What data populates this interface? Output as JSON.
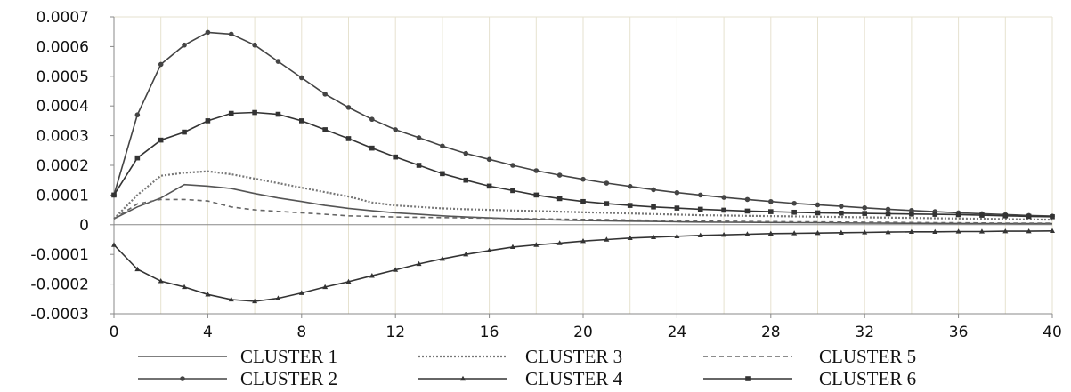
{
  "chart_data": {
    "type": "line",
    "title": "",
    "xlabel": "",
    "ylabel": "",
    "xlim": [
      0,
      40
    ],
    "ylim": [
      -0.0003,
      0.0007
    ],
    "xticks": [
      0,
      4,
      8,
      12,
      16,
      20,
      24,
      28,
      32,
      36,
      40
    ],
    "yticks": [
      -0.0003,
      -0.0002,
      -0.0001,
      0,
      0.0001,
      0.0002,
      0.0003,
      0.0004,
      0.0005,
      0.0006,
      0.0007
    ],
    "xtick_labels": [
      "0",
      "4",
      "8",
      "12",
      "16",
      "20",
      "24",
      "28",
      "32",
      "36",
      "40"
    ],
    "ytick_labels": [
      "-0.0003",
      "-0.0002",
      "-0.0001",
      "0",
      "0.0001",
      "0.0002",
      "0.0003",
      "0.0004",
      "0.0005",
      "0.0006",
      "0.0007"
    ],
    "grid": "vertical",
    "legend_position": "bottom",
    "x": [
      0,
      1,
      2,
      3,
      4,
      5,
      6,
      7,
      8,
      9,
      10,
      11,
      12,
      13,
      14,
      15,
      16,
      17,
      18,
      19,
      20,
      21,
      22,
      23,
      24,
      25,
      26,
      27,
      28,
      29,
      30,
      31,
      32,
      33,
      34,
      35,
      36,
      37,
      38,
      39,
      40
    ],
    "series": [
      {
        "name": "CLUSTER 1",
        "style": "solid-plain",
        "color": "#555555",
        "values": [
          2e-05,
          6e-05,
          9e-05,
          0.000135,
          0.00013,
          0.000122,
          0.000105,
          9e-05,
          7.8e-05,
          6.5e-05,
          5.5e-05,
          4.7e-05,
          4e-05,
          3.5e-05,
          3e-05,
          2.6e-05,
          2.3e-05,
          2e-05,
          1.8e-05,
          1.6e-05,
          1.4e-05,
          1.3e-05,
          1.2e-05,
          1.1e-05,
          1e-05,
          9e-06,
          8.5e-06,
          8e-06,
          7.5e-06,
          7e-06,
          6.5e-06,
          6e-06,
          5.5e-06,
          5e-06,
          4.8e-06,
          4.5e-06,
          4.3e-06,
          4e-06,
          3.8e-06,
          3.6e-06,
          3.5e-06
        ]
      },
      {
        "name": "CLUSTER 2",
        "style": "solid-circle",
        "color": "#444444",
        "values": [
          0.0001,
          0.00037,
          0.00054,
          0.000605,
          0.000648,
          0.000642,
          0.000605,
          0.00055,
          0.000495,
          0.00044,
          0.000395,
          0.000355,
          0.00032,
          0.000293,
          0.000265,
          0.00024,
          0.00022,
          0.0002,
          0.000182,
          0.000167,
          0.000153,
          0.00014,
          0.000129,
          0.000118,
          0.000108,
          0.0001,
          9.2e-05,
          8.5e-05,
          7.8e-05,
          7.2e-05,
          6.7e-05,
          6.2e-05,
          5.7e-05,
          5.2e-05,
          4.8e-05,
          4.4e-05,
          4e-05,
          3.7e-05,
          3.4e-05,
          3.1e-05,
          2.9e-05
        ]
      },
      {
        "name": "CLUSTER 3",
        "style": "dotted",
        "color": "#777777",
        "values": [
          2e-05,
          0.0001,
          0.000165,
          0.000175,
          0.00018,
          0.00017,
          0.000155,
          0.00014,
          0.000125,
          0.00011,
          9.5e-05,
          7.5e-05,
          6.5e-05,
          6e-05,
          5.5e-05,
          5.2e-05,
          5e-05,
          4.8e-05,
          4.6e-05,
          4.4e-05,
          4.2e-05,
          4e-05,
          3.8e-05,
          3.6e-05,
          3.4e-05,
          3.2e-05,
          3.1e-05,
          3e-05,
          2.9e-05,
          2.8e-05,
          2.7e-05,
          2.6e-05,
          2.5e-05,
          2.4e-05,
          2.3e-05,
          2.2e-05,
          2.1e-05,
          2e-05,
          1.9e-05,
          1.8e-05,
          1.7e-05
        ]
      },
      {
        "name": "CLUSTER 4",
        "style": "solid-triangle",
        "color": "#333333",
        "values": [
          -6.8e-05,
          -0.00015,
          -0.00019,
          -0.00021,
          -0.000235,
          -0.000252,
          -0.000258,
          -0.000248,
          -0.00023,
          -0.00021,
          -0.000192,
          -0.000172,
          -0.000152,
          -0.000132,
          -0.000115,
          -0.0001,
          -8.7e-05,
          -7.5e-05,
          -6.8e-05,
          -6.2e-05,
          -5.5e-05,
          -5e-05,
          -4.5e-05,
          -4.2e-05,
          -3.9e-05,
          -3.6e-05,
          -3.4e-05,
          -3.2e-05,
          -3e-05,
          -2.9e-05,
          -2.8e-05,
          -2.7e-05,
          -2.6e-05,
          -2.5e-05,
          -2.4e-05,
          -2.4e-05,
          -2.3e-05,
          -2.3e-05,
          -2.2e-05,
          -2.2e-05,
          -2.1e-05
        ]
      },
      {
        "name": "CLUSTER 5",
        "style": "dashed",
        "color": "#666666",
        "values": [
          2e-05,
          7e-05,
          8.5e-05,
          8.5e-05,
          8e-05,
          6e-05,
          5e-05,
          4.5e-05,
          4e-05,
          3.5e-05,
          3e-05,
          2.8e-05,
          2.6e-05,
          2.5e-05,
          2.4e-05,
          2.3e-05,
          2.2e-05,
          2.1e-05,
          2e-05,
          1.9e-05,
          1.8e-05,
          1.7e-05,
          1.6e-05,
          1.5e-05,
          1.4e-05,
          1.3e-05,
          1.2e-05,
          1.1e-05,
          1.05e-05,
          1e-05,
          9.5e-06,
          9e-06,
          8.5e-06,
          8e-06,
          7.5e-06,
          7e-06,
          6.5e-06,
          6e-06,
          5.5e-06,
          5e-06,
          5e-06
        ]
      },
      {
        "name": "CLUSTER 6",
        "style": "solid-square",
        "color": "#333333",
        "values": [
          0.0001,
          0.000225,
          0.000285,
          0.000312,
          0.00035,
          0.000375,
          0.000378,
          0.000372,
          0.00035,
          0.00032,
          0.00029,
          0.000258,
          0.000228,
          0.0002,
          0.000172,
          0.00015,
          0.00013,
          0.000115,
          0.0001,
          8.8e-05,
          7.8e-05,
          7.1e-05,
          6.5e-05,
          6e-05,
          5.6e-05,
          5.2e-05,
          4.9e-05,
          4.6e-05,
          4.4e-05,
          4.2e-05,
          4e-05,
          3.9e-05,
          3.8e-05,
          3.7e-05,
          3.6e-05,
          3.5e-05,
          3.4e-05,
          3.2e-05,
          3e-05,
          2.8e-05,
          2.7e-05
        ]
      }
    ]
  }
}
